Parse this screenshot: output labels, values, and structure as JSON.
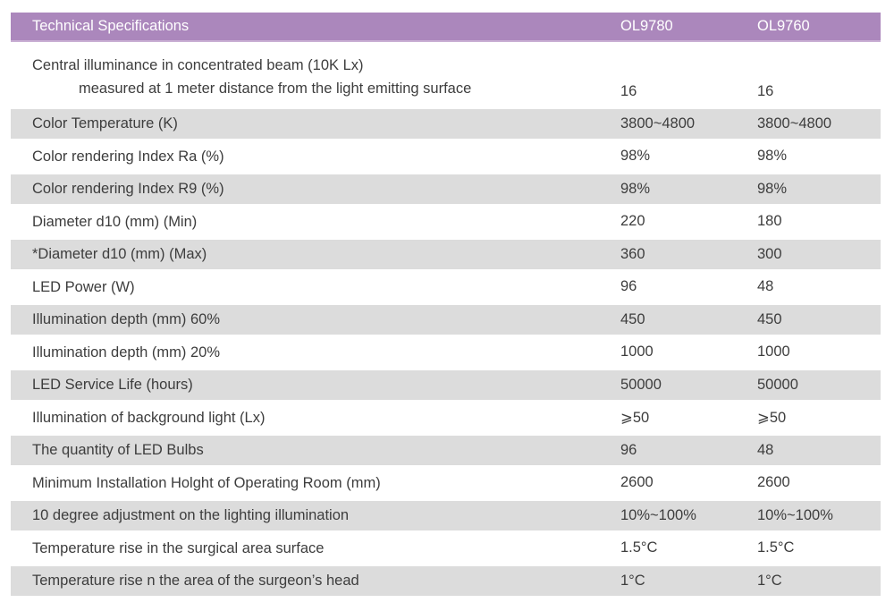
{
  "table": {
    "title": "Technical Specifications",
    "columns": [
      "OL9780",
      "OL9760"
    ],
    "colors": {
      "header_bg": "#ab87bc",
      "header_edge": "#c9afd4",
      "header_text": "#ffffff",
      "shaded_row_bg": "#dcdcdc",
      "body_text": "#3d3d3d",
      "page_bg": "#ffffff"
    },
    "rows": [
      {
        "label_lines": [
          "Central illuminance in concentrated beam (10K Lx)",
          "measured at 1 meter distance from the light emitting surface"
        ],
        "values": [
          "16",
          "16"
        ],
        "shaded": false,
        "tall": true
      },
      {
        "label_lines": [
          "Color Temperature (K)"
        ],
        "values": [
          "3800~4800",
          "3800~4800"
        ],
        "shaded": true
      },
      {
        "label_lines": [
          "Color rendering Index Ra (%)"
        ],
        "values": [
          "98%",
          "98%"
        ],
        "shaded": false
      },
      {
        "label_lines": [
          "Color rendering Index R9 (%)"
        ],
        "values": [
          "98%",
          "98%"
        ],
        "shaded": true
      },
      {
        "label_lines": [
          "Diameter d10 (mm) (Min)"
        ],
        "values": [
          "220",
          "180"
        ],
        "shaded": false
      },
      {
        "label_lines": [
          "*Diameter d10 (mm) (Max)"
        ],
        "values": [
          "360",
          "300"
        ],
        "shaded": true
      },
      {
        "label_lines": [
          "LED Power (W)"
        ],
        "values": [
          "96",
          "48"
        ],
        "shaded": false
      },
      {
        "label_lines": [
          "Illumination depth (mm) 60%"
        ],
        "values": [
          "450",
          "450"
        ],
        "shaded": true
      },
      {
        "label_lines": [
          "Illumination depth (mm) 20%"
        ],
        "values": [
          "1000",
          "1000"
        ],
        "shaded": false
      },
      {
        "label_lines": [
          "LED Service Life (hours)"
        ],
        "values": [
          "50000",
          "50000"
        ],
        "shaded": true
      },
      {
        "label_lines": [
          "Illumination of background light (Lx)"
        ],
        "values": [
          "⩾50",
          "⩾50"
        ],
        "shaded": false
      },
      {
        "label_lines": [
          "The quantity of LED Bulbs"
        ],
        "values": [
          "96",
          "48"
        ],
        "shaded": true
      },
      {
        "label_lines": [
          "Minimum Installation Holght of Operating Room (mm)"
        ],
        "values": [
          "2600",
          "2600"
        ],
        "shaded": false
      },
      {
        "label_lines": [
          "10 degree adjustment on the lighting illumination"
        ],
        "values": [
          "10%~100%",
          "10%~100%"
        ],
        "shaded": true
      },
      {
        "label_lines": [
          "Temperature rise in the surgical area surface"
        ],
        "values": [
          "1.5°C",
          "1.5°C"
        ],
        "shaded": false
      },
      {
        "label_lines": [
          "Temperature rise n the area of the surgeon’s head"
        ],
        "values": [
          "1°C",
          "1°C"
        ],
        "shaded": true
      }
    ]
  }
}
